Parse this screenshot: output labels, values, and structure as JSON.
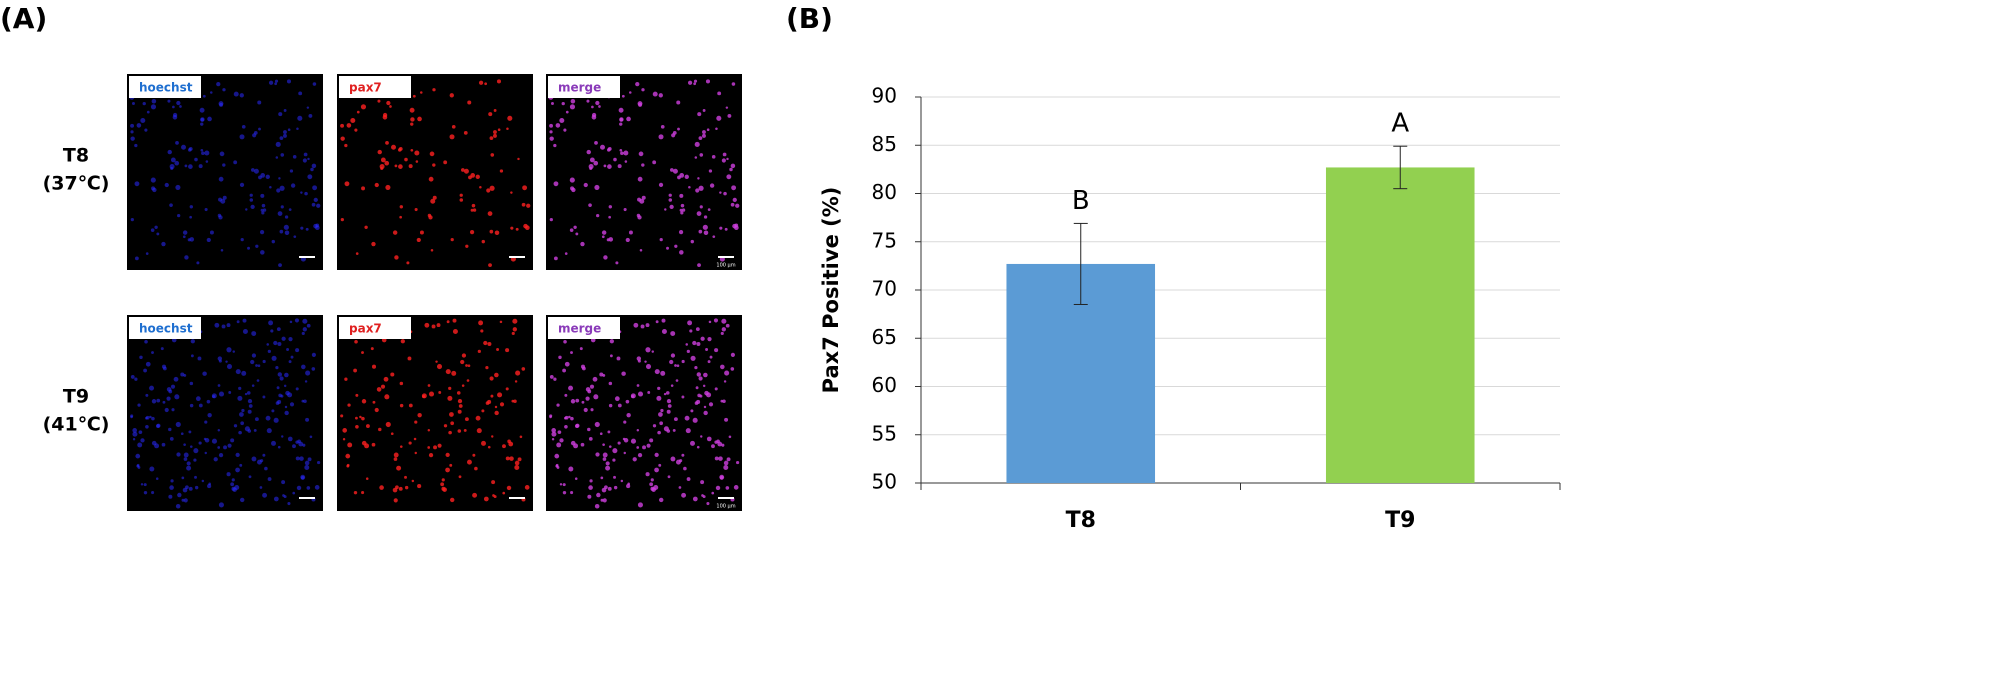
{
  "panel_labels": [
    "(A)",
    "(B)"
  ],
  "images": {
    "rows": [
      {
        "label": "T8",
        "condition": "(37℃)",
        "channels": [
          "hoechst",
          "pax7",
          "merge"
        ],
        "scale_bar": "100 μm"
      },
      {
        "label": "T9",
        "condition": "(41℃)",
        "channels": [
          "hoechst",
          "pax7",
          "merge"
        ],
        "scale_bar": "100 μm"
      }
    ]
  },
  "chart_data": {
    "type": "bar",
    "ylabel": "Pax7 Positive (%)",
    "categories": [
      "T8",
      "T9"
    ],
    "values": [
      72.7,
      82.7
    ],
    "errors": [
      4.2,
      2.2
    ],
    "annotations": [
      "B",
      "A"
    ],
    "colors": [
      "#5b9bd5",
      "#92d050"
    ],
    "ylim": [
      50,
      90
    ],
    "yticks": [
      50,
      55,
      60,
      65,
      70,
      75,
      80,
      85,
      90
    ],
    "grid": true
  }
}
